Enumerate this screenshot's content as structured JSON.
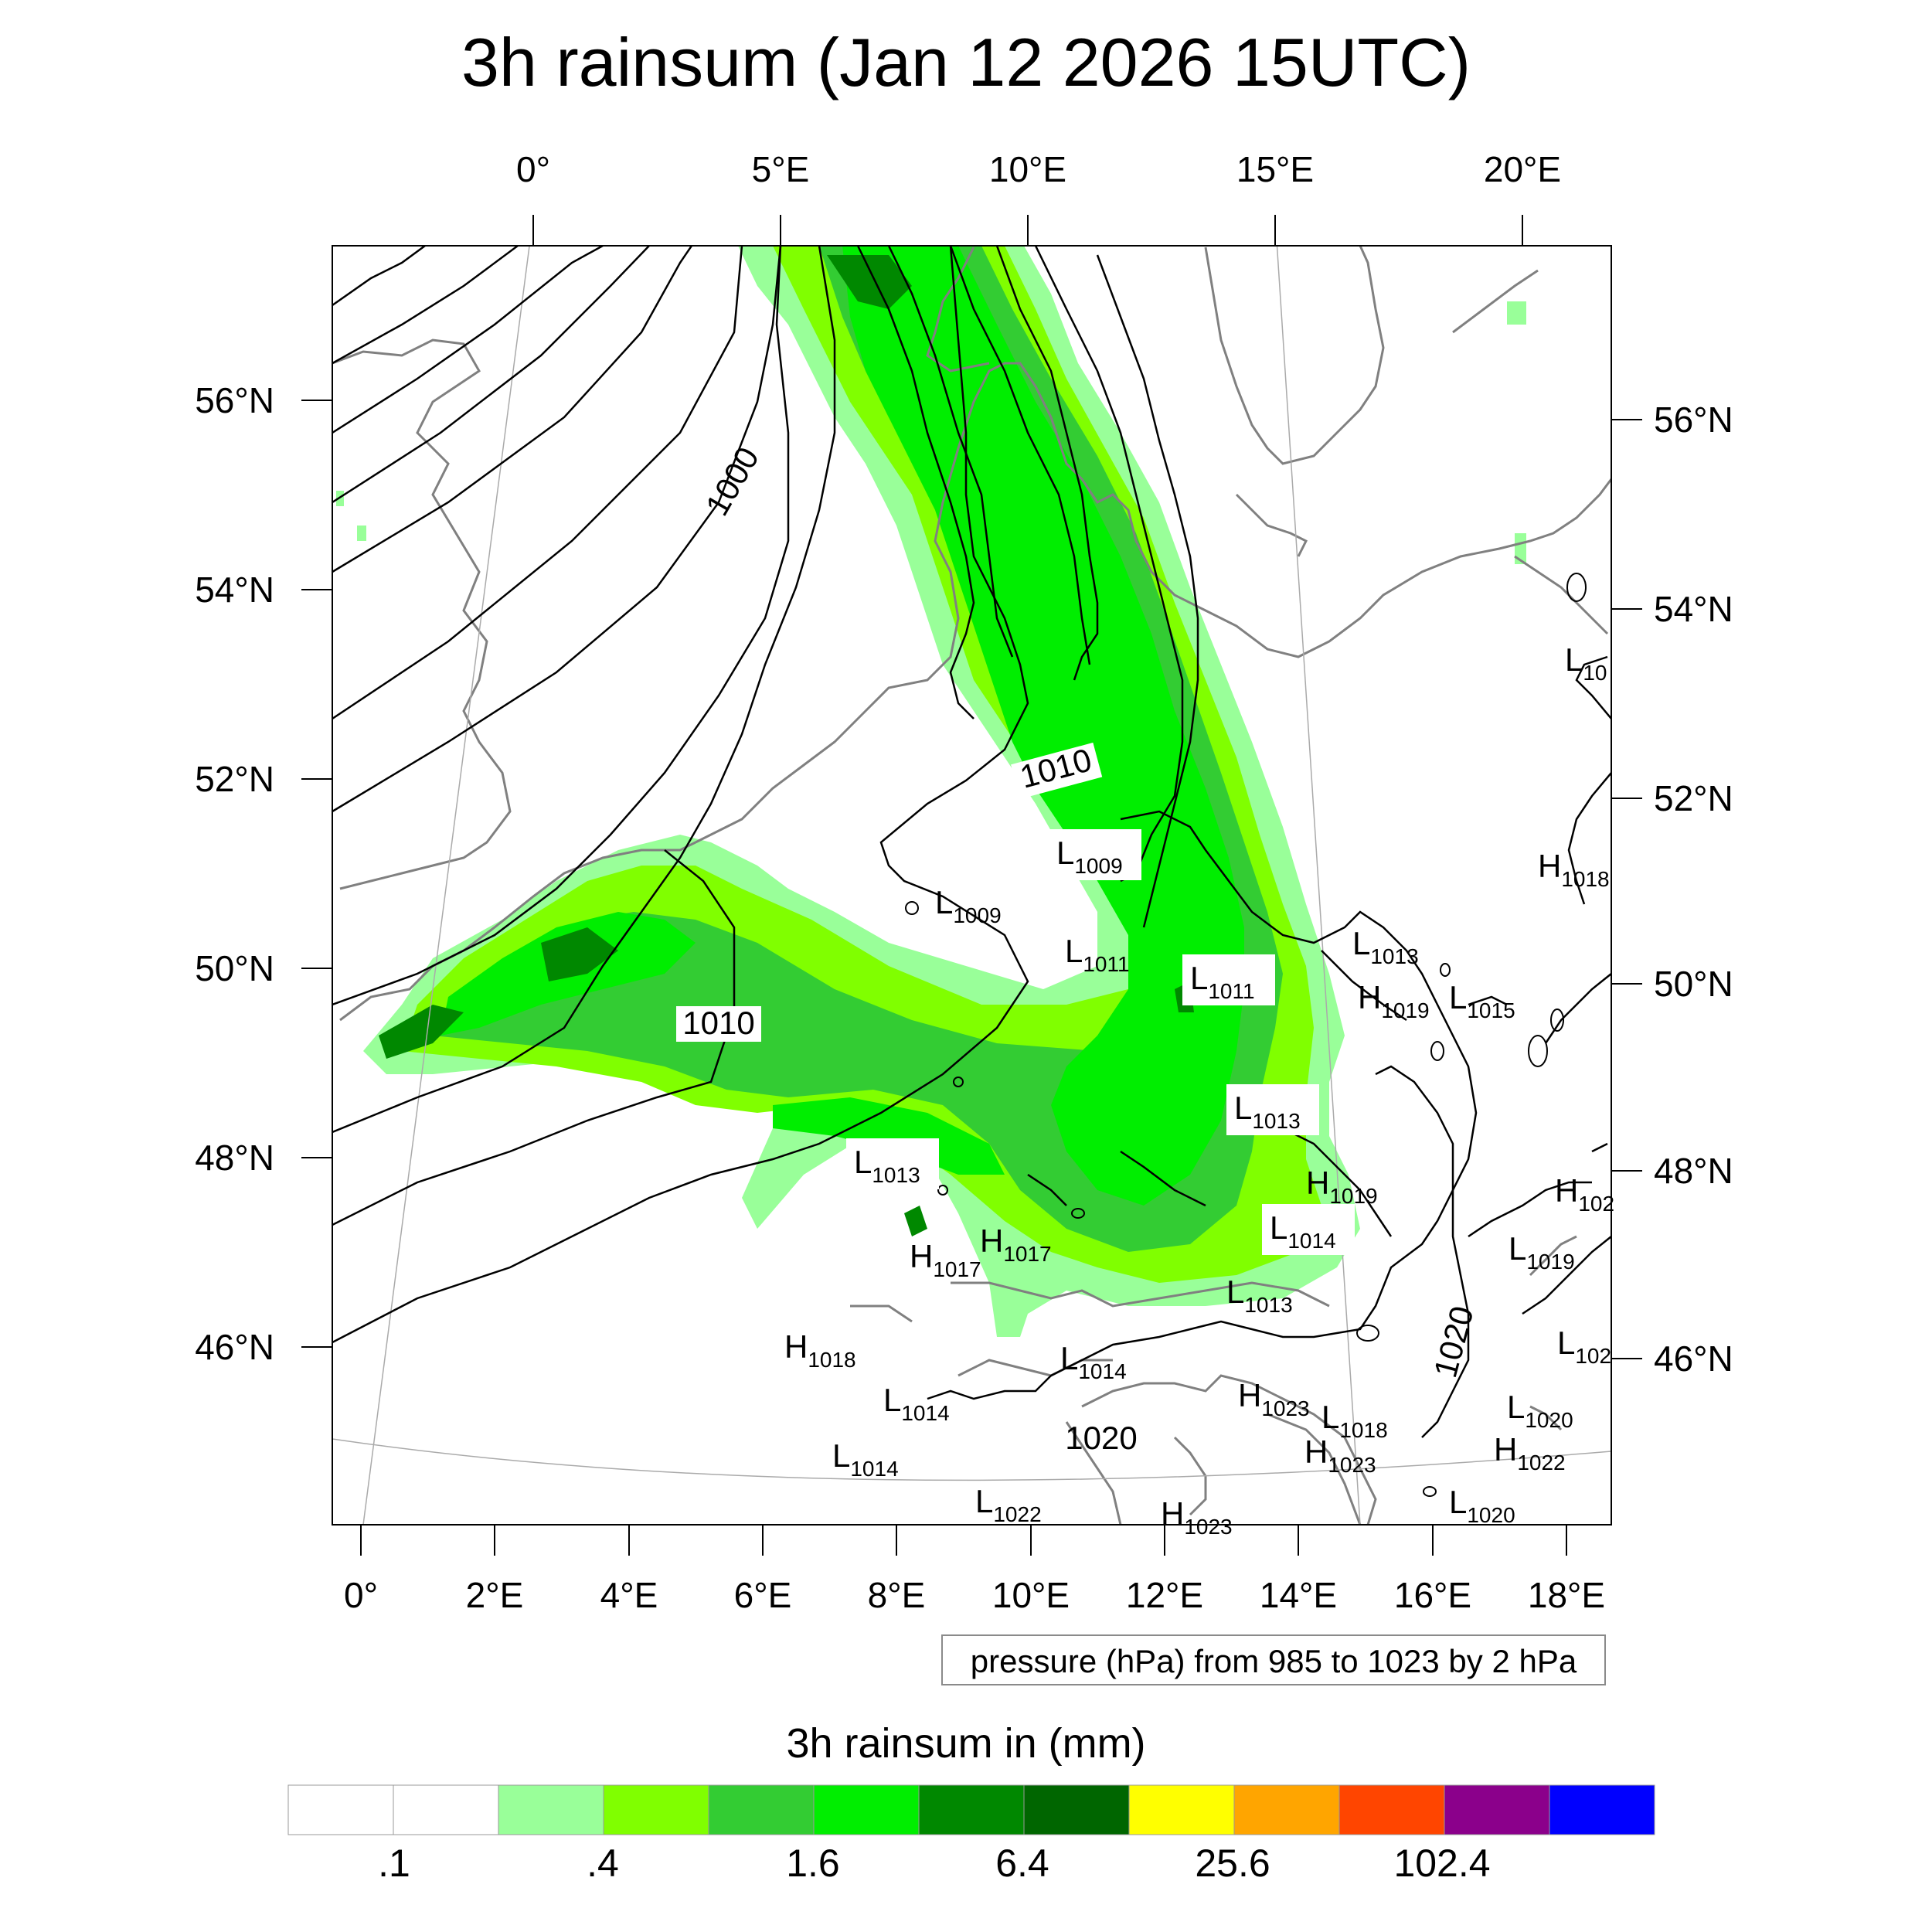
{
  "title": "3h rainsum (Jan 12 2026 15UTC)",
  "top_lon_labels": [
    "0°",
    "5°E",
    "10°E",
    "15°E",
    "20°E"
  ],
  "bottom_lon_labels": [
    "0°",
    "2°E",
    "4°E",
    "6°E",
    "8°E",
    "10°E",
    "12°E",
    "14°E",
    "16°E",
    "18°E"
  ],
  "left_lat_labels": [
    "56°N",
    "54°N",
    "52°N",
    "50°N",
    "48°N",
    "46°N"
  ],
  "right_lat_labels": [
    "56°N",
    "54°N",
    "52°N",
    "50°N",
    "48°N",
    "46°N"
  ],
  "contour_info": "pressure (hPa) from 985 to 1023 by 2 hPa",
  "contour_labels": [
    "1000",
    "1010",
    "1010",
    "1020",
    "1020"
  ],
  "pressure_centers": [
    {
      "type": "L",
      "value": "1009"
    },
    {
      "type": "L",
      "value": "1009"
    },
    {
      "type": "L",
      "value": "1011"
    },
    {
      "type": "L",
      "value": "1011"
    },
    {
      "type": "L",
      "value": "1013"
    },
    {
      "type": "H",
      "value": "1019"
    },
    {
      "type": "L",
      "value": "1015"
    },
    {
      "type": "L",
      "value": "10"
    },
    {
      "type": "H",
      "value": "1018"
    },
    {
      "type": "L",
      "value": "1013"
    },
    {
      "type": "L",
      "value": "1013"
    },
    {
      "type": "H",
      "value": "1019"
    },
    {
      "type": "L",
      "value": "1014"
    },
    {
      "type": "H",
      "value": "102"
    },
    {
      "type": "L",
      "value": "1019"
    },
    {
      "type": "H",
      "value": "1017"
    },
    {
      "type": "H",
      "value": "1017"
    },
    {
      "type": "L",
      "value": "1013"
    },
    {
      "type": "H",
      "value": "1018"
    },
    {
      "type": "L",
      "value": "1014"
    },
    {
      "type": "L",
      "value": "1014"
    },
    {
      "type": "L",
      "value": "1014"
    },
    {
      "type": "H",
      "value": "1023"
    },
    {
      "type": "L",
      "value": "1018"
    },
    {
      "type": "H",
      "value": "1023"
    },
    {
      "type": "L",
      "value": "102"
    },
    {
      "type": "L",
      "value": "1020"
    },
    {
      "type": "H",
      "value": "1022"
    },
    {
      "type": "L",
      "value": "1022"
    },
    {
      "type": "H",
      "value": "1023"
    },
    {
      "type": "L",
      "value": "1020"
    }
  ],
  "colorbar": {
    "title": "3h rainsum in (mm)",
    "colors": [
      "#ffffff",
      "#ffffff",
      "#99ff99",
      "#80ff00",
      "#33cc33",
      "#00ee00",
      "#008800",
      "#006600",
      "#ffff00",
      "#ffa500",
      "#ff4500",
      "#8b008b",
      "#0000ff"
    ],
    "tick_labels": [
      ".1",
      ".4",
      "1.6",
      "6.4",
      "25.6",
      "102.4"
    ]
  }
}
